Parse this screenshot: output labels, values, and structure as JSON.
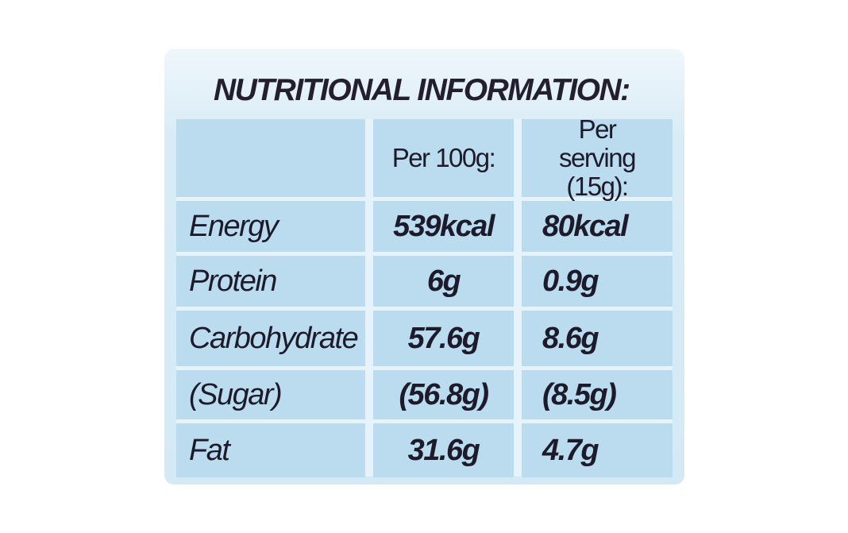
{
  "title": "NUTRITIONAL INFORMATION:",
  "table": {
    "header": [
      "Per 100g:",
      "Per serving (15g):"
    ],
    "rows": [
      [
        "Energy",
        "539kcal",
        "80kcal"
      ],
      [
        "Protein",
        "6g",
        "0.9g"
      ],
      [
        "Carbohydrate",
        "57.6g",
        "8.6g"
      ],
      [
        "(Sugar)",
        "(56.8g)",
        "(8.5g)"
      ],
      [
        "Fat",
        "31.6g",
        "4.7g"
      ]
    ]
  }
}
